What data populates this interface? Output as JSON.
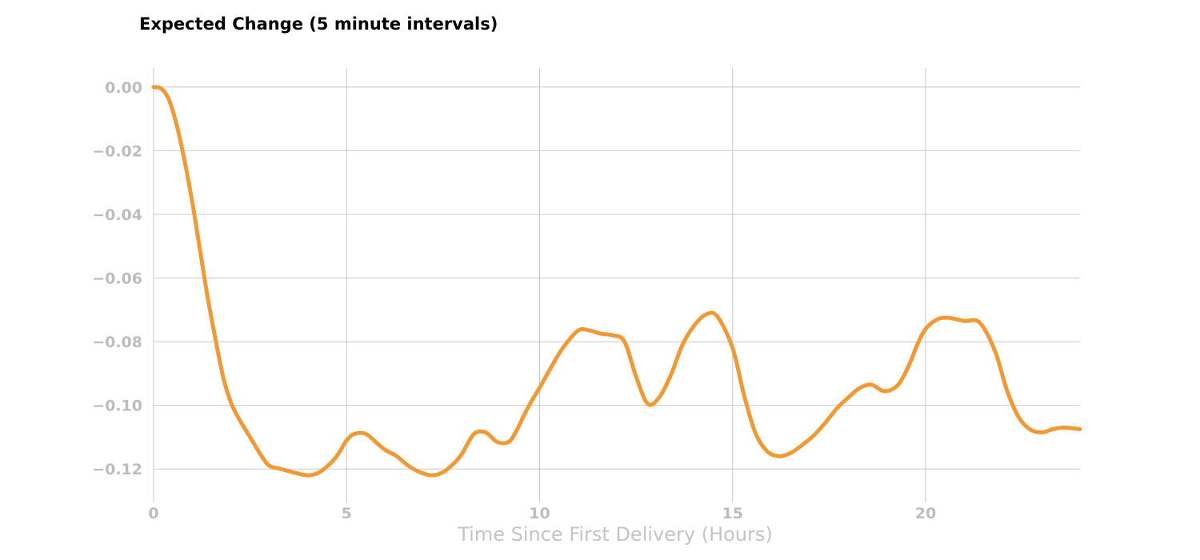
{
  "chart_data": {
    "type": "line",
    "title": "Expected Change (5 minute intervals)",
    "xlabel": "Time Since First Delivery (Hours)",
    "ylabel": "",
    "xlim": [
      0,
      24
    ],
    "ylim": [
      -0.1305,
      0.006
    ],
    "x_ticks": [
      0,
      5,
      10,
      15,
      20
    ],
    "x_tick_labels": [
      "0",
      "5",
      "10",
      "15",
      "20"
    ],
    "y_ticks": [
      0.0,
      -0.02,
      -0.04,
      -0.06,
      -0.08,
      -0.1,
      -0.12
    ],
    "y_tick_labels": [
      "0.00",
      "−0.02",
      "−0.04",
      "−0.06",
      "−0.08",
      "−0.10",
      "−0.12"
    ],
    "grid": true,
    "line_color": "#f09a37",
    "series": [
      {
        "x": [
          0,
          0.2,
          0.4,
          0.6,
          0.8,
          1.0,
          1.2,
          1.4,
          1.6,
          1.8,
          2.0,
          2.2,
          2.5,
          2.8,
          3.0,
          3.3,
          3.6,
          4.0,
          4.3,
          4.6,
          4.8,
          5.0,
          5.2,
          5.5,
          5.8,
          6.0,
          6.3,
          6.6,
          6.9,
          7.2,
          7.5,
          7.8,
          8.0,
          8.3,
          8.6,
          8.9,
          9.2,
          9.4,
          9.6,
          9.8,
          10.0,
          10.3,
          10.6,
          11.0,
          11.3,
          11.6,
          11.9,
          12.2,
          12.5,
          12.8,
          13.1,
          13.4,
          13.7,
          14.0,
          14.3,
          14.6,
          15.0,
          15.3,
          15.6,
          15.9,
          16.2,
          16.5,
          16.8,
          17.1,
          17.4,
          17.7,
          18.0,
          18.3,
          18.6,
          18.9,
          19.2,
          19.4,
          19.6,
          19.8,
          20.0,
          20.3,
          20.6,
          21.0,
          21.4,
          21.8,
          22.1,
          22.4,
          22.7,
          23.0,
          23.3,
          23.6,
          24.0
        ],
        "y": [
          0.0,
          -0.0005,
          -0.004,
          -0.012,
          -0.023,
          -0.036,
          -0.051,
          -0.066,
          -0.079,
          -0.091,
          -0.099,
          -0.104,
          -0.11,
          -0.116,
          -0.119,
          -0.12,
          -0.121,
          -0.122,
          -0.121,
          -0.118,
          -0.115,
          -0.111,
          -0.109,
          -0.109,
          -0.112,
          -0.114,
          -0.116,
          -0.119,
          -0.121,
          -0.122,
          -0.121,
          -0.118,
          -0.115,
          -0.109,
          -0.1085,
          -0.1115,
          -0.1115,
          -0.108,
          -0.103,
          -0.0985,
          -0.0945,
          -0.088,
          -0.082,
          -0.0765,
          -0.0765,
          -0.0775,
          -0.078,
          -0.08,
          -0.091,
          -0.0995,
          -0.0975,
          -0.0905,
          -0.081,
          -0.075,
          -0.0715,
          -0.072,
          -0.082,
          -0.097,
          -0.109,
          -0.1145,
          -0.116,
          -0.115,
          -0.1125,
          -0.1095,
          -0.1055,
          -0.101,
          -0.0975,
          -0.0945,
          -0.0935,
          -0.0955,
          -0.0945,
          -0.0915,
          -0.0865,
          -0.0805,
          -0.076,
          -0.073,
          -0.0725,
          -0.0735,
          -0.074,
          -0.083,
          -0.095,
          -0.1035,
          -0.1075,
          -0.1085,
          -0.1075,
          -0.107,
          -0.1075
        ]
      }
    ]
  }
}
